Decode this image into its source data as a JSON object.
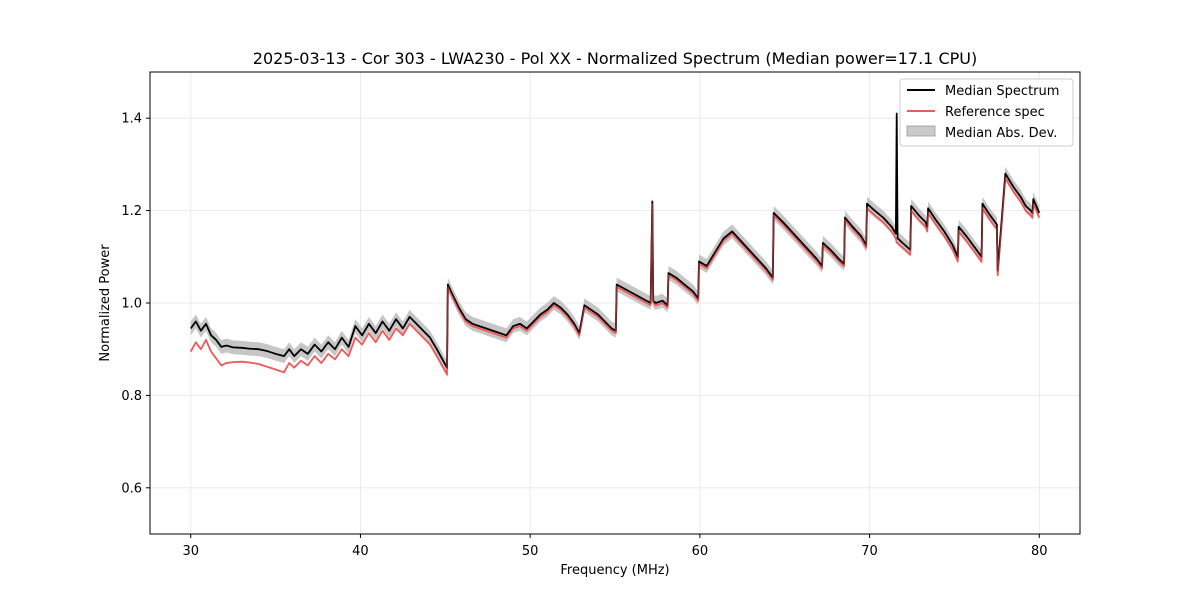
{
  "chart_data": {
    "type": "line",
    "title": "2025-03-13 - Cor 303 - LWA230 - Pol XX - Normalized Spectrum (Median power=17.1 CPU)",
    "xlabel": "Frequency (MHz)",
    "ylabel": "Normalized Power",
    "xlim": [
      27.6,
      82.4
    ],
    "ylim": [
      0.5,
      1.5
    ],
    "xticks": [
      30,
      40,
      50,
      60,
      70,
      80
    ],
    "yticks": [
      0.6,
      0.8,
      1.0,
      1.2,
      1.4
    ],
    "grid": true,
    "legend_position": "top-right",
    "series": [
      {
        "name": "Median Spectrum",
        "color": "#000000",
        "x": [
          30.0,
          30.3,
          30.6,
          30.9,
          31.2,
          31.5,
          31.8,
          32.1,
          32.5,
          33.0,
          33.5,
          34.0,
          34.5,
          35.0,
          35.5,
          35.8,
          36.1,
          36.5,
          36.9,
          37.3,
          37.7,
          38.1,
          38.5,
          38.9,
          39.3,
          39.7,
          40.1,
          40.5,
          40.9,
          41.3,
          41.7,
          42.1,
          42.5,
          42.9,
          43.3,
          43.7,
          44.1,
          44.5,
          44.8,
          45.1,
          45.15,
          45.4,
          45.8,
          46.2,
          46.6,
          47.0,
          47.4,
          47.8,
          48.2,
          48.6,
          49.0,
          49.4,
          49.8,
          50.2,
          50.6,
          51.0,
          51.4,
          51.8,
          52.2,
          52.6,
          52.9,
          53.2,
          53.6,
          54.0,
          54.4,
          54.8,
          55.05,
          55.1,
          55.6,
          56.1,
          56.6,
          57.1,
          57.2,
          57.25,
          57.4,
          57.8,
          58.1,
          58.15,
          58.6,
          59.1,
          59.6,
          59.9,
          59.95,
          60.4,
          60.9,
          61.4,
          61.9,
          62.4,
          62.9,
          63.4,
          63.9,
          64.3,
          64.35,
          64.9,
          65.4,
          65.9,
          66.4,
          66.9,
          67.2,
          67.25,
          67.7,
          68.2,
          68.5,
          68.55,
          69.0,
          69.5,
          69.8,
          69.85,
          70.3,
          70.8,
          71.3,
          71.55,
          71.6,
          71.65,
          72.1,
          72.4,
          72.45,
          72.9,
          73.3,
          73.4,
          73.45,
          73.9,
          74.4,
          74.9,
          75.2,
          75.25,
          75.7,
          76.2,
          76.6,
          76.65,
          77.0,
          77.5,
          77.55,
          78.0,
          78.5,
          78.9,
          79.2,
          79.5,
          79.6,
          79.65,
          80.0
        ],
        "values": [
          0.945,
          0.96,
          0.94,
          0.955,
          0.93,
          0.92,
          0.905,
          0.908,
          0.904,
          0.903,
          0.901,
          0.9,
          0.896,
          0.89,
          0.885,
          0.9,
          0.885,
          0.9,
          0.89,
          0.91,
          0.895,
          0.915,
          0.9,
          0.925,
          0.905,
          0.95,
          0.93,
          0.955,
          0.935,
          0.96,
          0.94,
          0.965,
          0.945,
          0.97,
          0.955,
          0.94,
          0.925,
          0.9,
          0.88,
          0.86,
          1.04,
          1.02,
          0.99,
          0.965,
          0.955,
          0.95,
          0.945,
          0.94,
          0.935,
          0.93,
          0.95,
          0.955,
          0.945,
          0.96,
          0.975,
          0.985,
          1.0,
          0.99,
          0.975,
          0.955,
          0.935,
          0.995,
          0.985,
          0.975,
          0.96,
          0.945,
          0.94,
          1.04,
          1.03,
          1.02,
          1.01,
          1.0,
          1.22,
          1.005,
          1.0,
          1.005,
          0.995,
          1.065,
          1.055,
          1.04,
          1.025,
          1.01,
          1.09,
          1.08,
          1.11,
          1.14,
          1.155,
          1.135,
          1.115,
          1.095,
          1.075,
          1.055,
          1.195,
          1.175,
          1.155,
          1.135,
          1.115,
          1.095,
          1.08,
          1.13,
          1.115,
          1.095,
          1.085,
          1.185,
          1.165,
          1.145,
          1.125,
          1.215,
          1.2,
          1.185,
          1.165,
          1.15,
          1.41,
          1.14,
          1.125,
          1.115,
          1.21,
          1.19,
          1.175,
          1.165,
          1.205,
          1.18,
          1.155,
          1.125,
          1.1,
          1.165,
          1.145,
          1.12,
          1.1,
          1.215,
          1.195,
          1.17,
          1.07,
          1.28,
          1.25,
          1.23,
          1.21,
          1.2,
          1.195,
          1.225,
          1.195
        ]
      },
      {
        "name": "Reference spec",
        "color": "#f05a5a",
        "x": [
          30.0,
          30.3,
          30.6,
          30.9,
          31.2,
          31.5,
          31.8,
          32.1,
          32.5,
          33.0,
          33.5,
          34.0,
          34.5,
          35.0,
          35.5,
          35.8,
          36.1,
          36.5,
          36.9,
          37.3,
          37.7,
          38.1,
          38.5,
          38.9,
          39.3,
          39.7,
          40.1,
          40.5,
          40.9,
          41.3,
          41.7,
          42.1,
          42.5,
          42.9,
          43.3,
          43.7,
          44.1,
          44.5,
          44.8,
          45.1,
          45.15,
          45.4,
          45.8,
          46.2,
          46.6,
          47.0,
          47.4,
          47.8,
          48.2,
          48.6,
          49.0,
          49.4,
          49.8,
          50.2,
          50.6,
          51.0,
          51.4,
          51.8,
          52.2,
          52.6,
          52.9,
          53.2,
          53.6,
          54.0,
          54.4,
          54.8,
          55.05,
          55.1,
          55.6,
          56.1,
          56.6,
          57.1,
          57.2,
          57.25,
          57.4,
          57.8,
          58.1,
          58.15,
          58.6,
          59.1,
          59.6,
          59.9,
          59.95,
          60.4,
          60.9,
          61.4,
          61.9,
          62.4,
          62.9,
          63.4,
          63.9,
          64.3,
          64.35,
          64.9,
          65.4,
          65.9,
          66.4,
          66.9,
          67.2,
          67.25,
          67.7,
          68.2,
          68.5,
          68.55,
          69.0,
          69.5,
          69.8,
          69.85,
          70.3,
          70.8,
          71.3,
          71.55,
          71.6,
          71.65,
          72.1,
          72.4,
          72.45,
          72.9,
          73.3,
          73.4,
          73.45,
          73.9,
          74.4,
          74.9,
          75.2,
          75.25,
          75.7,
          76.2,
          76.6,
          76.65,
          77.0,
          77.5,
          77.55,
          78.0,
          78.5,
          78.9,
          79.2,
          79.5,
          79.6,
          79.65,
          80.0
        ],
        "values": [
          0.895,
          0.915,
          0.9,
          0.92,
          0.895,
          0.88,
          0.865,
          0.87,
          0.872,
          0.873,
          0.871,
          0.868,
          0.862,
          0.856,
          0.85,
          0.87,
          0.86,
          0.875,
          0.865,
          0.885,
          0.87,
          0.89,
          0.878,
          0.9,
          0.885,
          0.925,
          0.91,
          0.935,
          0.915,
          0.94,
          0.92,
          0.945,
          0.93,
          0.955,
          0.94,
          0.925,
          0.91,
          0.885,
          0.865,
          0.845,
          1.035,
          1.015,
          0.985,
          0.96,
          0.95,
          0.945,
          0.94,
          0.935,
          0.93,
          0.925,
          0.945,
          0.95,
          0.94,
          0.955,
          0.97,
          0.98,
          0.995,
          0.985,
          0.97,
          0.95,
          0.93,
          0.99,
          0.98,
          0.97,
          0.955,
          0.94,
          0.935,
          1.035,
          1.025,
          1.015,
          1.005,
          0.995,
          1.215,
          1.0,
          0.995,
          1.0,
          0.99,
          1.06,
          1.05,
          1.035,
          1.02,
          1.005,
          1.085,
          1.075,
          1.105,
          1.135,
          1.15,
          1.13,
          1.11,
          1.09,
          1.07,
          1.05,
          1.19,
          1.17,
          1.15,
          1.13,
          1.11,
          1.09,
          1.075,
          1.125,
          1.11,
          1.09,
          1.08,
          1.18,
          1.16,
          1.14,
          1.12,
          1.205,
          1.19,
          1.175,
          1.155,
          1.14,
          1.13,
          1.13,
          1.115,
          1.105,
          1.2,
          1.18,
          1.165,
          1.155,
          1.195,
          1.17,
          1.145,
          1.115,
          1.09,
          1.155,
          1.135,
          1.11,
          1.09,
          1.205,
          1.185,
          1.16,
          1.06,
          1.27,
          1.24,
          1.22,
          1.2,
          1.19,
          1.185,
          1.215,
          1.185
        ]
      }
    ],
    "band": {
      "name": "Median Abs. Dev.",
      "color": "#b3b3b3",
      "width": 0.015
    },
    "legend": [
      "Median Spectrum",
      "Reference spec",
      "Median Abs. Dev."
    ]
  }
}
